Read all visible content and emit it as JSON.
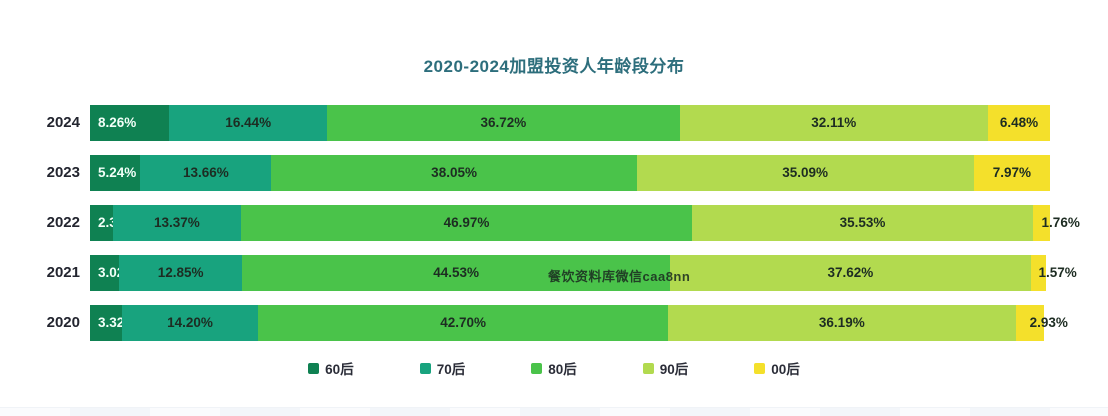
{
  "title": "2020-2024加盟投资人年龄段分布",
  "watermark": "餐饮资料库微信caa8nn",
  "chart_data": {
    "type": "bar",
    "orientation": "horizontal",
    "stacked": true,
    "title": "2020-2024加盟投资人年龄段分布",
    "categories": [
      "2024",
      "2023",
      "2022",
      "2021",
      "2020"
    ],
    "series": [
      {
        "name": "60后",
        "color": "#0f8152",
        "values": [
          8.26,
          5.24,
          2.37,
          3.02,
          3.32
        ]
      },
      {
        "name": "70后",
        "color": "#18a37e",
        "values": [
          16.44,
          13.66,
          13.37,
          12.85,
          14.2
        ]
      },
      {
        "name": "80后",
        "color": "#4ac34a",
        "values": [
          36.72,
          38.05,
          46.97,
          44.53,
          42.7
        ]
      },
      {
        "name": "90后",
        "color": "#b2da4f",
        "values": [
          32.11,
          35.09,
          35.53,
          37.62,
          36.19
        ]
      },
      {
        "name": "00后",
        "color": "#f4e02b",
        "values": [
          6.48,
          7.97,
          1.76,
          1.57,
          2.93
        ]
      }
    ],
    "value_format": "percent_2dp",
    "xlim": [
      0,
      100
    ],
    "xlabel": "",
    "ylabel": "",
    "grid": false,
    "legend_position": "bottom"
  }
}
